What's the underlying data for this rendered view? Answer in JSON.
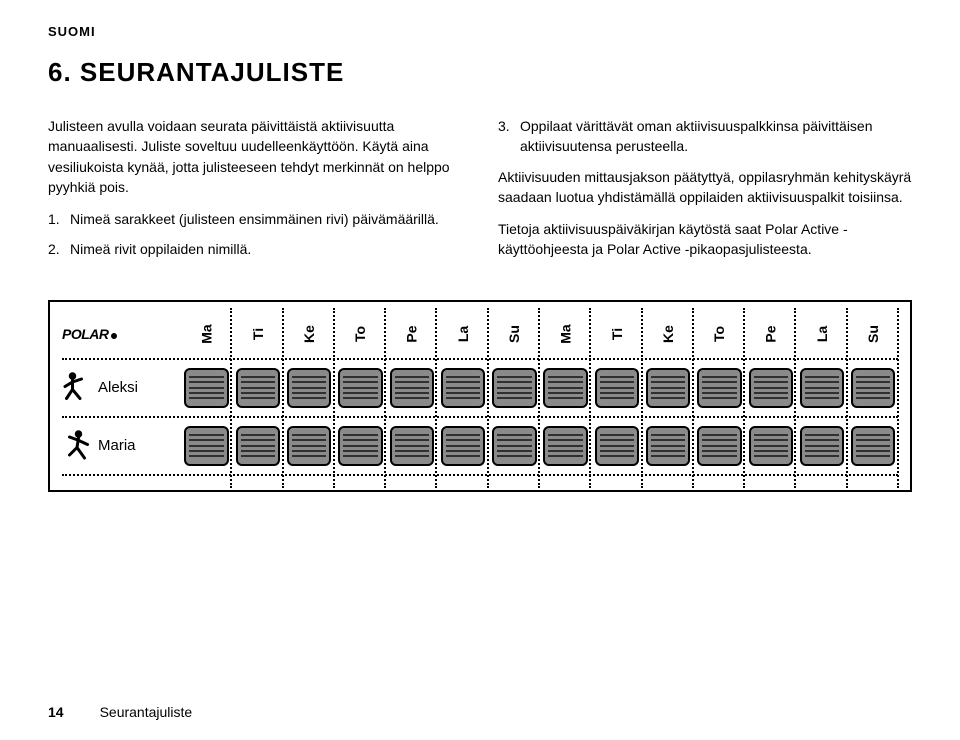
{
  "lang_label": "SUOMI",
  "heading": "6. SEURANTAJULISTE",
  "col_left": {
    "intro": "Julisteen avulla voidaan seurata päivittäistä aktiivisuutta manuaalisesti. Juliste soveltuu uudelleenkäyttöön. Käytä aina vesiliukoista kynää, jotta julisteeseen tehdyt merkinnät on helppo pyyhkiä pois.",
    "items": [
      "Nimeä sarakkeet (julisteen ensimmäinen rivi) päivämäärillä.",
      "Nimeä rivit oppilaiden nimillä."
    ]
  },
  "col_right": {
    "item3": "Oppilaat värittävät oman aktiivisuuspalkkinsa päivittäisen aktiivisuutensa perusteella.",
    "para2": "Aktiivisuuden mittausjakson päätyttyä, oppilasryhmän kehityskäyrä saadaan luotua yhdistämällä oppilaiden aktiivisuuspalkit toisiinsa.",
    "para3": "Tietoja aktiivisuuspäiväkirjan käytöstä saat Polar Active -käyttöohjeesta ja Polar Active -pikaopasjulisteesta."
  },
  "figure": {
    "brand": "POLAR",
    "days": [
      "Ma",
      "Ti",
      "Ke",
      "To",
      "Pe",
      "La",
      "Su",
      "Ma",
      "Ti",
      "Ke",
      "To",
      "Pe",
      "La",
      "Su"
    ],
    "rows": [
      {
        "name": "Aleksi"
      },
      {
        "name": "Maria"
      }
    ],
    "bar_fill": "#8a8a8a",
    "bar_border": "#000000",
    "stripe_count": 5
  },
  "footer": {
    "page": "14",
    "section": "Seurantajuliste"
  }
}
